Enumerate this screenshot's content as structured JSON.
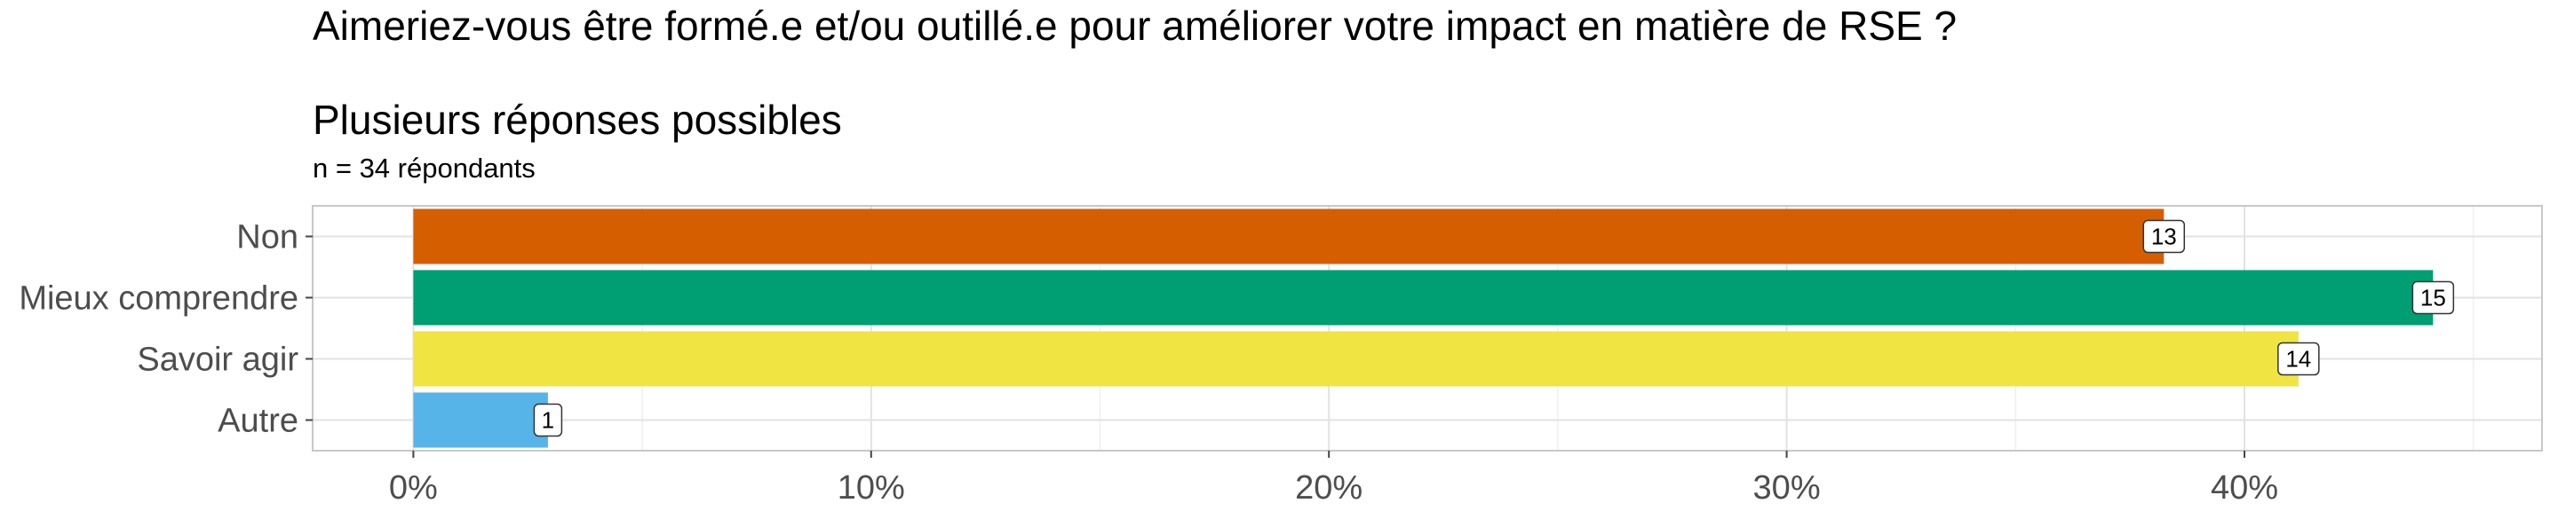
{
  "title": "Aimeriez-vous être formé.e et/ou outillé.e pour améliorer votre impact en matière de RSE ?",
  "subtitle": "Plusieurs réponses possibles",
  "caption": "n = 34 répondants",
  "chart_data": {
    "type": "bar",
    "orientation": "horizontal",
    "categories": [
      "Non",
      "Mieux comprendre",
      "Savoir agir",
      "Autre"
    ],
    "values": [
      38.24,
      44.12,
      41.18,
      2.94
    ],
    "labels": [
      "13",
      "15",
      "14",
      "1"
    ],
    "colors": [
      "#D55E00",
      "#009E73",
      "#F0E442",
      "#56B4E9"
    ],
    "x_ticks": [
      0,
      10,
      20,
      30,
      40
    ],
    "x_tick_labels": [
      "0%",
      "10%",
      "20%",
      "30%",
      "40%"
    ],
    "xlim": [
      -2.2,
      46.5
    ],
    "grid": true,
    "legend": "none"
  }
}
